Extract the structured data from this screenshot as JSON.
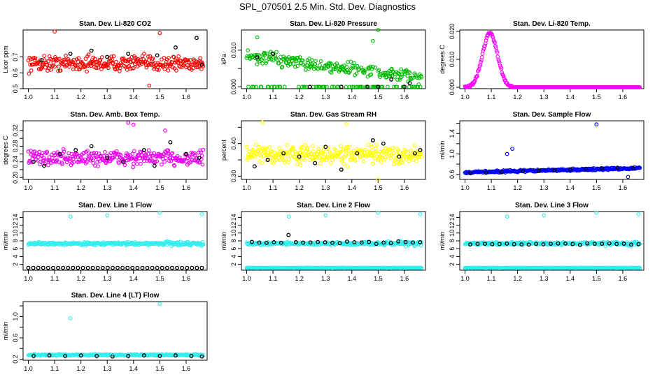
{
  "title": "SPL_070501  2.5 Min. Std. Dev. Diagnostics",
  "chart_data": [
    {
      "type": "scatter",
      "title": "Stan. Dev. Li-820 CO2",
      "ylabel": "Licor ppm",
      "xlim": [
        0.98,
        1.68
      ],
      "ylim": [
        0.5,
        0.87
      ],
      "xticks": [
        1.0,
        1.1,
        1.2,
        1.3,
        1.4,
        1.5,
        1.6
      ],
      "yticks": [
        0.5,
        0.6,
        0.7
      ],
      "color": "#ff0000",
      "style": "band",
      "base": 0.66,
      "spread": 0.07,
      "outliers": [
        [
          1.1,
          0.86
        ],
        [
          1.5,
          0.85
        ],
        [
          1.46,
          0.52
        ]
      ],
      "black": [
        [
          1.05,
          0.68
        ],
        [
          1.16,
          0.72
        ],
        [
          1.24,
          0.74
        ],
        [
          1.3,
          0.7
        ],
        [
          1.38,
          0.72
        ],
        [
          1.49,
          0.71
        ],
        [
          1.56,
          0.76
        ],
        [
          1.64,
          0.82
        ],
        [
          1.66,
          0.65
        ]
      ]
    },
    {
      "type": "scatter",
      "title": "Stan. Dev. Li-820 Pressure",
      "ylabel": "kPa",
      "xlim": [
        0.98,
        1.68
      ],
      "ylim": [
        -0.0005,
        0.0155
      ],
      "xticks": [
        1.0,
        1.1,
        1.2,
        1.3,
        1.4,
        1.5,
        1.6
      ],
      "yticks": [
        0.0,
        0.005,
        0.01
      ],
      "ytick_labels": [
        "0.000",
        "",
        "0.010"
      ],
      "color": "#00bb00",
      "style": "pressure",
      "outliers": [
        [
          1.5,
          0.0155
        ],
        [
          1.48,
          0.0125
        ],
        [
          1.04,
          0.0135
        ]
      ],
      "black": [
        [
          1.04,
          0.008
        ],
        [
          1.1,
          0.009
        ],
        [
          1.24,
          0.0
        ],
        [
          1.36,
          0.0
        ],
        [
          1.46,
          0.0
        ],
        [
          1.5,
          0.0
        ],
        [
          1.55,
          0.002
        ],
        [
          1.6,
          0.0
        ],
        [
          1.62,
          0.001
        ]
      ]
    },
    {
      "type": "scatter",
      "title": "Stan. Dev. Li-820 Temp.",
      "ylabel": "degrees C",
      "xlim": [
        0.98,
        1.68
      ],
      "ylim": [
        -0.0005,
        0.0205
      ],
      "xticks": [
        1.0,
        1.1,
        1.2,
        1.3,
        1.4,
        1.5,
        1.6
      ],
      "yticks": [
        0.0,
        0.01,
        0.02
      ],
      "ytick_labels": [
        "0.000",
        "0.010",
        "0.020"
      ],
      "color": "#ff00ff",
      "style": "peak",
      "outliers": [],
      "black": []
    },
    {
      "type": "scatter",
      "title": "Stan. Dev. Amb. Box Temp.",
      "ylabel": "degrees C",
      "xlim": [
        0.98,
        1.68
      ],
      "ylim": [
        0.195,
        0.345
      ],
      "xticks": [
        1.0,
        1.1,
        1.2,
        1.3,
        1.4,
        1.5,
        1.6
      ],
      "yticks": [
        0.2,
        0.22,
        0.24,
        0.26,
        0.28,
        0.3,
        0.32
      ],
      "ytick_labels": [
        "0.20",
        "",
        "0.24",
        "",
        "0.28",
        "",
        "0.32"
      ],
      "color": "#ee00ee",
      "style": "band",
      "base": 0.25,
      "spread": 0.03,
      "outliers": [
        [
          1.38,
          0.34
        ],
        [
          1.4,
          0.335
        ],
        [
          1.52,
          0.32
        ]
      ],
      "black": [
        [
          1.02,
          0.24
        ],
        [
          1.06,
          0.23
        ],
        [
          1.12,
          0.26
        ],
        [
          1.18,
          0.27
        ],
        [
          1.24,
          0.28
        ],
        [
          1.3,
          0.25
        ],
        [
          1.36,
          0.24
        ],
        [
          1.44,
          0.27
        ],
        [
          1.48,
          0.23
        ],
        [
          1.54,
          0.29
        ],
        [
          1.6,
          0.26
        ],
        [
          1.65,
          0.25
        ]
      ]
    },
    {
      "type": "scatter",
      "title": "Stan. Dev. Gas Stream RH",
      "ylabel": "percent",
      "xlim": [
        0.98,
        1.68
      ],
      "ylim": [
        0.29,
        0.47
      ],
      "xticks": [
        1.0,
        1.1,
        1.2,
        1.3,
        1.4,
        1.5,
        1.6
      ],
      "yticks": [
        0.3,
        0.35,
        0.4,
        0.45
      ],
      "ytick_labels": [
        "0.30",
        "",
        "0.40",
        ""
      ],
      "color": "#ffff00",
      "style": "band",
      "base": 0.365,
      "spread": 0.04,
      "outliers": [
        [
          1.06,
          0.465
        ],
        [
          1.38,
          0.46
        ],
        [
          1.5,
          0.29
        ]
      ],
      "black": [
        [
          1.03,
          0.33
        ],
        [
          1.08,
          0.35
        ],
        [
          1.14,
          0.37
        ],
        [
          1.2,
          0.36
        ],
        [
          1.26,
          0.34
        ],
        [
          1.3,
          0.39
        ],
        [
          1.36,
          0.32
        ],
        [
          1.42,
          0.37
        ],
        [
          1.48,
          0.41
        ],
        [
          1.52,
          0.4
        ],
        [
          1.58,
          0.36
        ],
        [
          1.64,
          0.37
        ],
        [
          1.66,
          0.38
        ]
      ]
    },
    {
      "type": "scatter",
      "title": "Stan. Dev. Sample Flow",
      "ylabel": "ml/min",
      "xlim": [
        0.98,
        1.68
      ],
      "ylim": [
        0.5,
        1.65
      ],
      "xticks": [
        1.0,
        1.1,
        1.2,
        1.3,
        1.4,
        1.5,
        1.6
      ],
      "yticks": [
        0.6,
        0.8,
        1.0,
        1.2,
        1.4,
        1.6
      ],
      "ytick_labels": [
        "0.6",
        "",
        "1.0",
        "",
        "1.4",
        ""
      ],
      "color": "#0000ff",
      "style": "trend",
      "base": 0.64,
      "slope": 0.12,
      "spread": 0.03,
      "outliers": [
        [
          1.5,
          1.58
        ],
        [
          1.18,
          1.1
        ],
        [
          1.16,
          1.0
        ],
        [
          1.62,
          0.55
        ]
      ],
      "black": [
        [
          1.02,
          0.62
        ],
        [
          1.08,
          0.63
        ],
        [
          1.14,
          0.64
        ],
        [
          1.22,
          0.66
        ],
        [
          1.28,
          0.67
        ],
        [
          1.34,
          0.68
        ],
        [
          1.4,
          0.7
        ],
        [
          1.46,
          0.71
        ],
        [
          1.52,
          0.72
        ],
        [
          1.58,
          0.73
        ],
        [
          1.64,
          0.72
        ]
      ]
    },
    {
      "type": "scatter",
      "title": "Stan. Dev. Line 1 Flow",
      "ylabel": "ml/min",
      "xlim": [
        0.98,
        1.68
      ],
      "ylim": [
        0.5,
        15.5
      ],
      "xticks": [
        1.0,
        1.1,
        1.2,
        1.3,
        1.4,
        1.5,
        1.6
      ],
      "yticks": [
        2,
        4,
        6,
        8,
        10,
        12,
        14
      ],
      "color": "#33eeee",
      "style": "flow1",
      "outliers": [
        [
          1.16,
          14.2
        ],
        [
          1.3,
          14.5
        ],
        [
          1.5,
          15.2
        ],
        [
          1.66,
          14.8
        ]
      ],
      "black": []
    },
    {
      "type": "scatter",
      "title": "Stan. Dev. Line 2 Flow",
      "ylabel": "ml/min",
      "xlim": [
        0.98,
        1.68
      ],
      "ylim": [
        0.5,
        15.5
      ],
      "xticks": [
        1.0,
        1.1,
        1.2,
        1.3,
        1.4,
        1.5,
        1.6
      ],
      "yticks": [
        2,
        4,
        6,
        8,
        10,
        12,
        14
      ],
      "color": "#33eeee",
      "style": "flow2",
      "outliers": [
        [
          1.16,
          14.2
        ],
        [
          1.3,
          14.5
        ],
        [
          1.5,
          15.2
        ],
        [
          1.66,
          14.8
        ]
      ],
      "black": []
    },
    {
      "type": "scatter",
      "title": "Stan. Dev. Line 3 Flow",
      "ylabel": "ml/min",
      "xlim": [
        0.98,
        1.68
      ],
      "ylim": [
        0.5,
        15.5
      ],
      "xticks": [
        1.0,
        1.1,
        1.2,
        1.3,
        1.4,
        1.5,
        1.6
      ],
      "yticks": [
        2,
        4,
        6,
        8,
        10,
        12,
        14
      ],
      "color": "#33eeee",
      "style": "flow3",
      "outliers": [
        [
          1.16,
          14.2
        ],
        [
          1.3,
          14.5
        ],
        [
          1.5,
          15.2
        ],
        [
          1.66,
          14.8
        ]
      ],
      "black": []
    },
    {
      "type": "scatter",
      "title": "Stan. Dev. Line 4 (LT) Flow",
      "ylabel": "ml/min",
      "xlim": [
        0.98,
        1.68
      ],
      "ylim": [
        0.18,
        1.28
      ],
      "xticks": [
        1.0,
        1.1,
        1.2,
        1.3,
        1.4,
        1.5,
        1.6
      ],
      "yticks": [
        0.2,
        0.4,
        0.6,
        0.8,
        1.0,
        1.2
      ],
      "ytick_labels": [
        "0.2",
        "",
        "0.6",
        "",
        "1.0",
        ""
      ],
      "color": "#33eeee",
      "style": "band",
      "base": 0.28,
      "spread": 0.02,
      "outliers": [
        [
          1.5,
          1.24
        ],
        [
          1.16,
          0.97
        ]
      ],
      "black": [
        [
          1.02,
          0.26
        ],
        [
          1.08,
          0.27
        ],
        [
          1.14,
          0.26
        ],
        [
          1.2,
          0.27
        ],
        [
          1.26,
          0.26
        ],
        [
          1.32,
          0.25
        ],
        [
          1.38,
          0.26
        ],
        [
          1.44,
          0.27
        ],
        [
          1.5,
          0.26
        ],
        [
          1.56,
          0.27
        ],
        [
          1.62,
          0.26
        ],
        [
          1.66,
          0.25
        ]
      ]
    }
  ]
}
